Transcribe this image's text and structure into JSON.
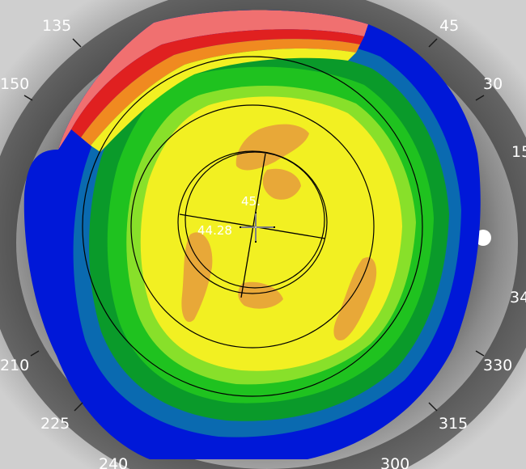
{
  "map": {
    "type": "corneal topography map",
    "readings": {
      "steep_k": "45.",
      "flat_k": "44.28"
    },
    "axis_labels": {
      "a135": "135",
      "a45": "45",
      "a150": "150",
      "a30": "30",
      "a15": "15",
      "a345": "34",
      "a210": "210",
      "a330": "330",
      "a225": "225",
      "a315": "315",
      "a240": "240",
      "a300": "300"
    },
    "colors": {
      "background": "#2a2a2a",
      "sclera": "#cfcfcf",
      "iris_dark": "#3a3a3a",
      "blue": "#0018d8",
      "teal": "#0a6ab0",
      "green_dark": "#0a9a2a",
      "green": "#1fc21f",
      "green_light": "#88e02a",
      "yellow": "#f2f022",
      "orange": "#e8a838",
      "red": "#e02020",
      "pink": "#f07070",
      "line": "#000000",
      "text": "#ffffff"
    }
  }
}
